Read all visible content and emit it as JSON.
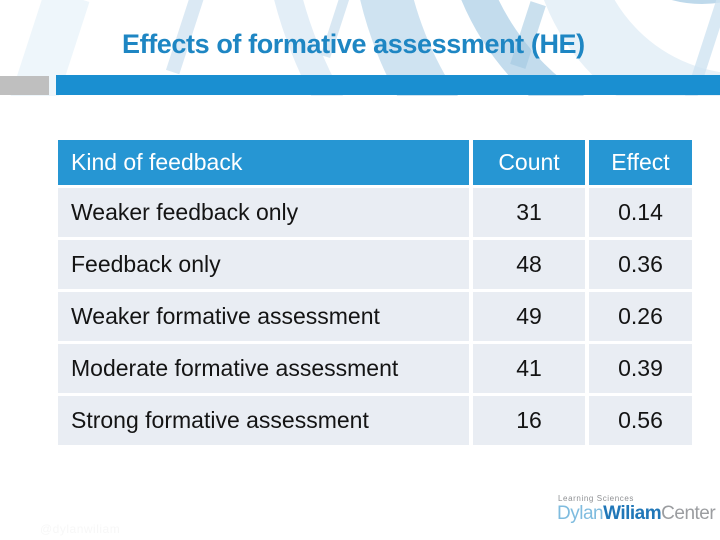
{
  "slide": {
    "title": "Effects of formative assessment (HE)",
    "footer_left": "@dylanwiliam"
  },
  "logo": {
    "tagline": "Learning Sciences",
    "dylan": "Dylan",
    "wiliam": "Wiliam",
    "center": "Center"
  },
  "table": {
    "headers": [
      "Kind of feedback",
      "Count",
      "Effect"
    ],
    "rows": [
      {
        "label": "Weaker feedback only",
        "count": "31",
        "effect": "0.14"
      },
      {
        "label": "Feedback only",
        "count": "48",
        "effect": "0.36"
      },
      {
        "label": "Weaker formative assessment",
        "count": "49",
        "effect": "0.26"
      },
      {
        "label": "Moderate formative assessment",
        "count": "41",
        "effect": "0.39"
      },
      {
        "label": "Strong formative assessment",
        "count": "16",
        "effect": "0.56"
      }
    ]
  },
  "colors": {
    "title_text": "#1e86c3",
    "accent_bar": "#1a8fd1",
    "gray_accent": "#bfbfbf",
    "table_header_bg": "#2696d3",
    "table_row_bg": "#e9edf3",
    "logo_light_blue": "#7fbcdf",
    "logo_dark_blue": "#2077b8",
    "logo_gray": "#9b9da0"
  }
}
